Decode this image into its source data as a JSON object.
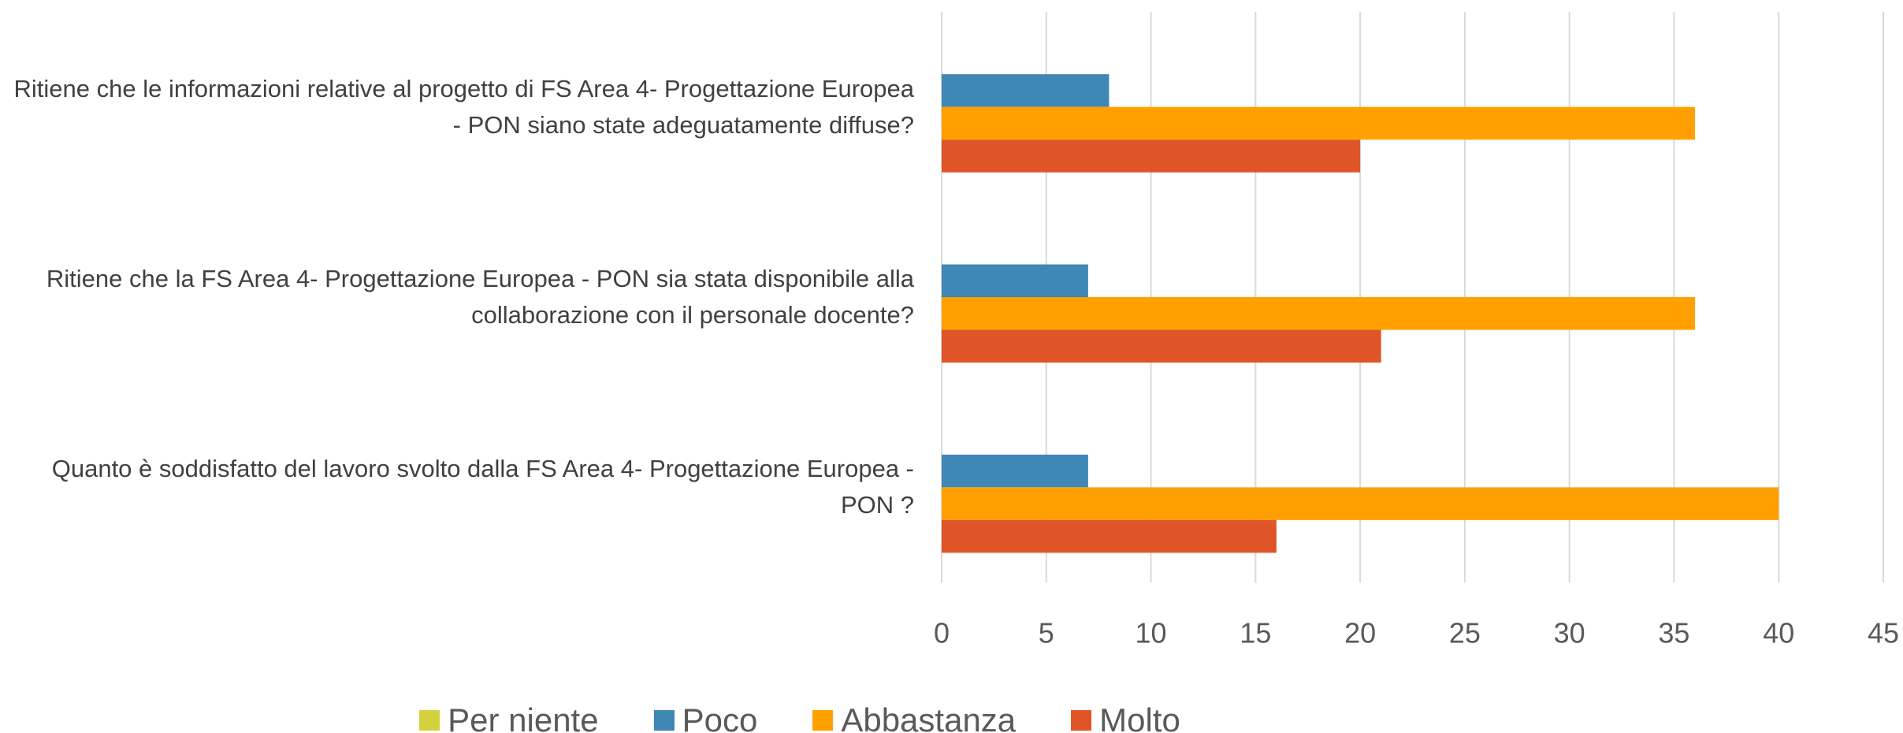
{
  "chart_data": {
    "type": "bar",
    "orientation": "horizontal",
    "categories": [
      "Ritiene che le informazioni relative al progetto di FS Area 4- Progettazione Europea - PON siano state adeguatamente diffuse?",
      "Ritiene che la FS Area 4- Progettazione Europea - PON sia stata disponibile alla collaborazione con il personale docente?",
      "Quanto è soddisfatto del lavoro svolto dalla FS Area 4- Progettazione Europea - PON ?"
    ],
    "series": [
      {
        "name": "Per niente",
        "color": "#d4d13f",
        "values": [
          0,
          0,
          0
        ]
      },
      {
        "name": "Poco",
        "color": "#3f87b4",
        "values": [
          8,
          7,
          7
        ]
      },
      {
        "name": "Abbastanza",
        "color": "#ffa000",
        "values": [
          36,
          36,
          40
        ]
      },
      {
        "name": "Molto",
        "color": "#e05528",
        "values": [
          20,
          21,
          16
        ]
      }
    ],
    "xlim": [
      0,
      45
    ],
    "xticks": [
      0,
      5,
      10,
      15,
      20,
      25,
      30,
      35,
      40,
      45
    ],
    "grid": true,
    "legend": "bottom"
  }
}
